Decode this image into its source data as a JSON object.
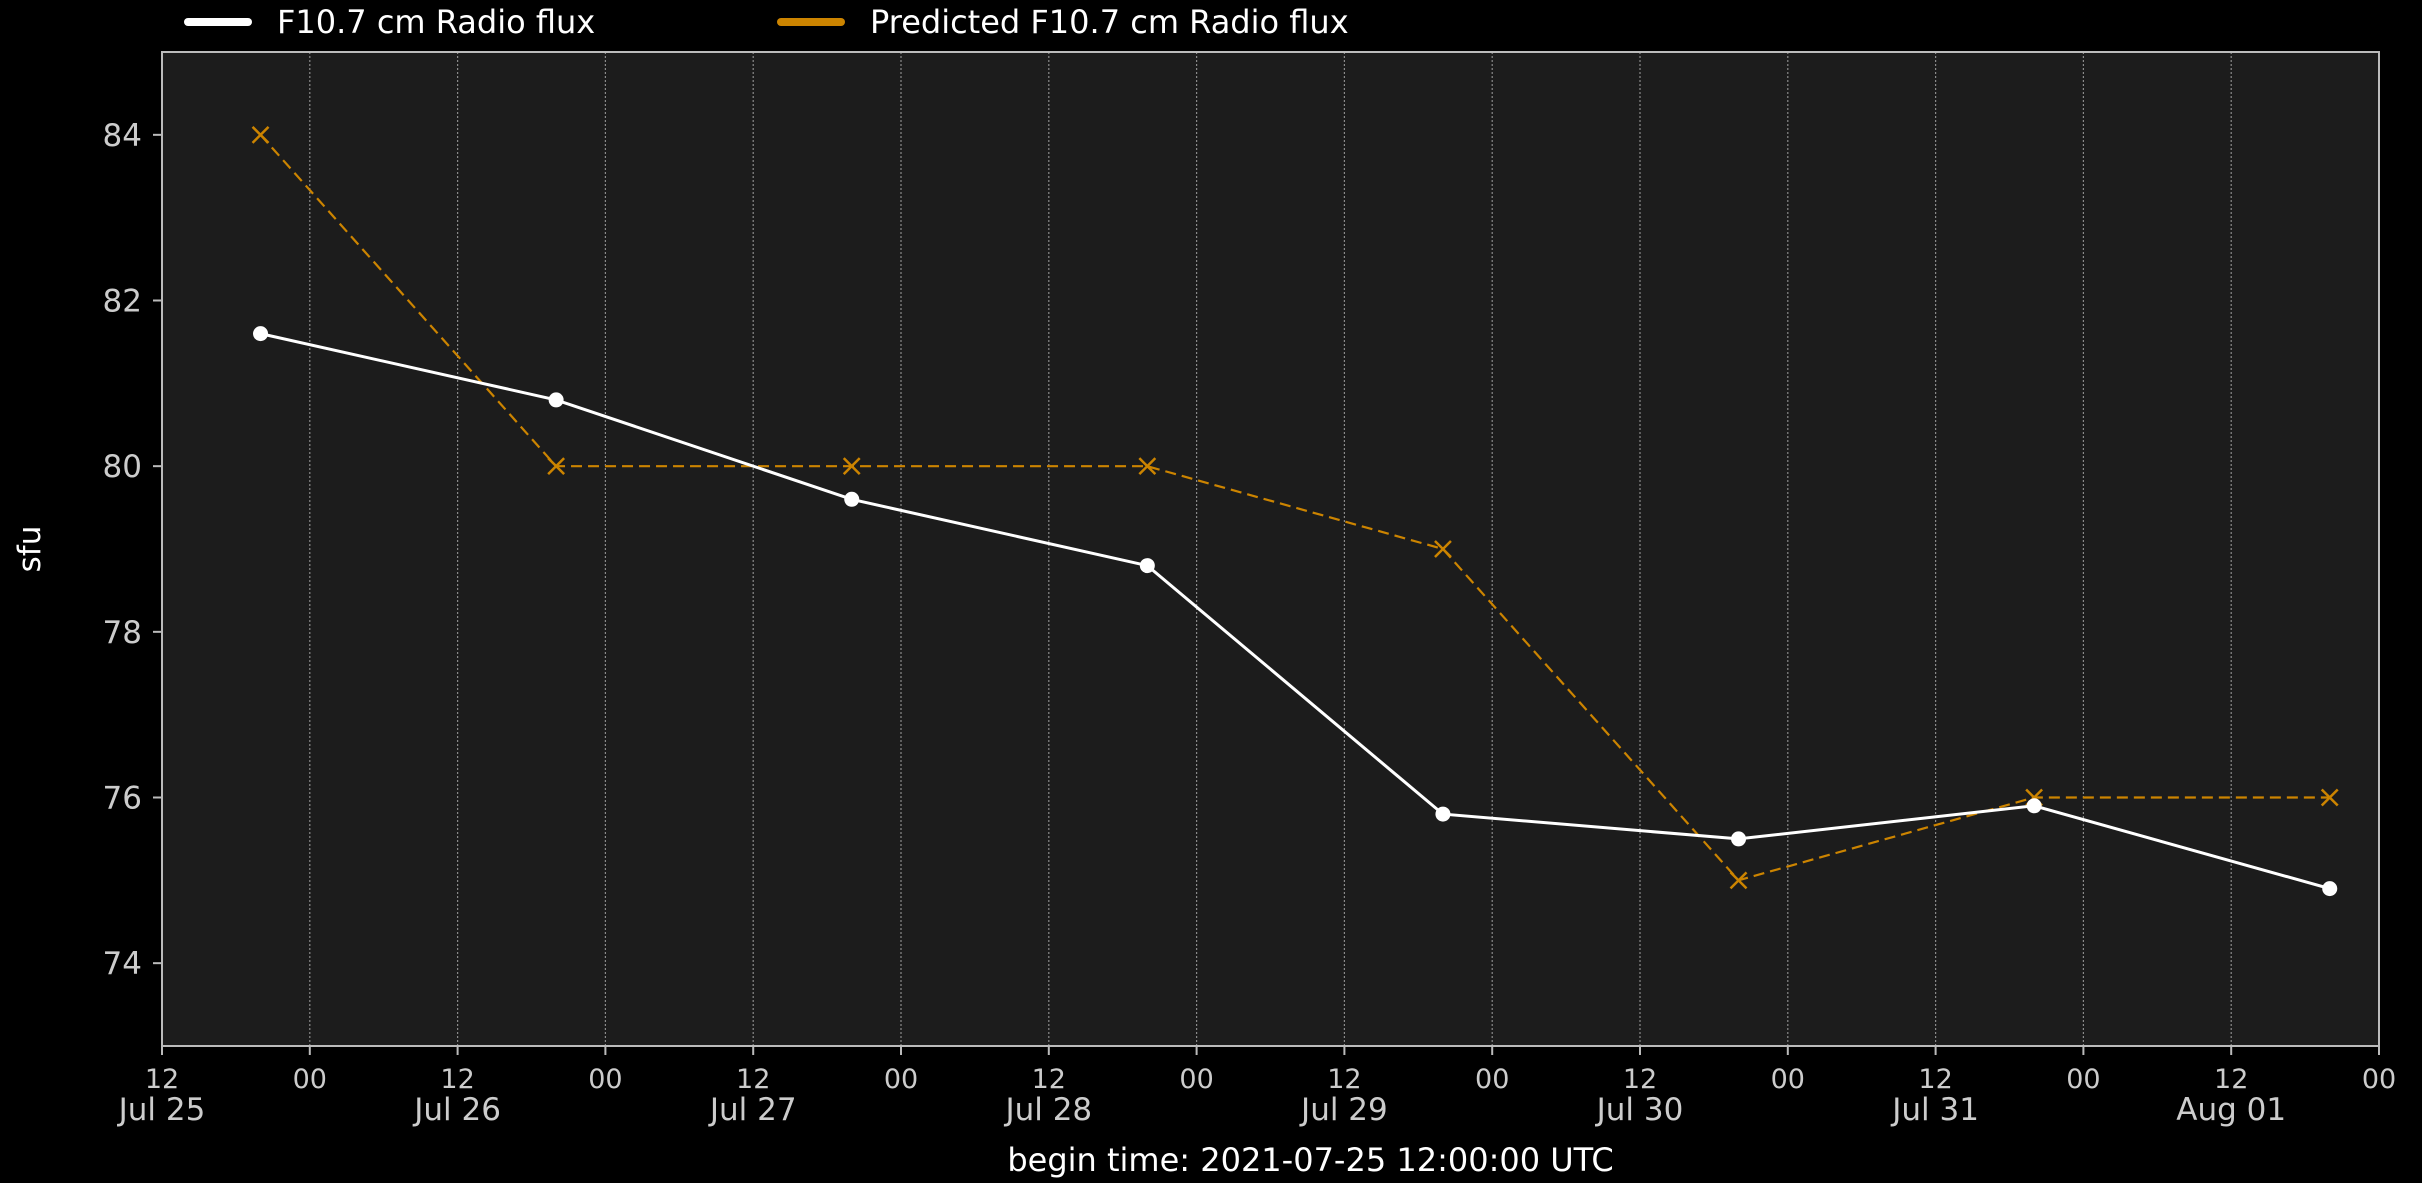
{
  "chart_data": {
    "type": "line",
    "xlabel": "begin time: 2021-07-25 12:00:00 UTC",
    "ylabel": "sfu",
    "ylim": [
      73,
      85
    ],
    "xlim": [
      "2021-07-25 12:00",
      "2021-08-02 00:00"
    ],
    "yticks": [
      74,
      76,
      78,
      80,
      82,
      84
    ],
    "xticks": [
      {
        "t": "2021-07-25 12:00",
        "top": "12",
        "bottom": "Jul 25"
      },
      {
        "t": "2021-07-26 00:00",
        "top": "00",
        "bottom": ""
      },
      {
        "t": "2021-07-26 12:00",
        "top": "12",
        "bottom": "Jul 26"
      },
      {
        "t": "2021-07-27 00:00",
        "top": "00",
        "bottom": ""
      },
      {
        "t": "2021-07-27 12:00",
        "top": "12",
        "bottom": "Jul 27"
      },
      {
        "t": "2021-07-28 00:00",
        "top": "00",
        "bottom": ""
      },
      {
        "t": "2021-07-28 12:00",
        "top": "12",
        "bottom": "Jul 28"
      },
      {
        "t": "2021-07-29 00:00",
        "top": "00",
        "bottom": ""
      },
      {
        "t": "2021-07-29 12:00",
        "top": "12",
        "bottom": "Jul 29"
      },
      {
        "t": "2021-07-30 00:00",
        "top": "00",
        "bottom": ""
      },
      {
        "t": "2021-07-30 12:00",
        "top": "12",
        "bottom": "Jul 30"
      },
      {
        "t": "2021-07-31 00:00",
        "top": "00",
        "bottom": ""
      },
      {
        "t": "2021-07-31 12:00",
        "top": "12",
        "bottom": "Jul 31"
      },
      {
        "t": "2021-08-01 00:00",
        "top": "00",
        "bottom": ""
      },
      {
        "t": "2021-08-01 12:00",
        "top": "12",
        "bottom": "Aug 01"
      },
      {
        "t": "2021-08-02 00:00",
        "top": "00",
        "bottom": ""
      }
    ],
    "grid": true,
    "legend_position": "top",
    "background": "#000000",
    "plot_background": "#1c1c1c",
    "series": [
      {
        "name": "F10.7 cm Radio flux",
        "color": "#ffffff",
        "line_style": "solid",
        "marker": "circle",
        "x": [
          "2021-07-25 20:00",
          "2021-07-26 20:00",
          "2021-07-27 20:00",
          "2021-07-28 20:00",
          "2021-07-29 20:00",
          "2021-07-30 20:00",
          "2021-07-31 20:00",
          "2021-08-01 20:00"
        ],
        "values": [
          81.6,
          80.8,
          79.6,
          78.8,
          75.8,
          75.5,
          75.9,
          74.9
        ]
      },
      {
        "name": "Predicted F10.7 cm Radio flux",
        "color": "#cc8400",
        "line_style": "dashed",
        "marker": "x",
        "x": [
          "2021-07-25 20:00",
          "2021-07-26 20:00",
          "2021-07-27 20:00",
          "2021-07-28 20:00",
          "2021-07-29 20:00",
          "2021-07-30 20:00",
          "2021-07-31 20:00",
          "2021-08-01 20:00"
        ],
        "values": [
          84,
          80,
          80,
          80,
          79,
          75,
          76,
          76
        ]
      }
    ]
  }
}
